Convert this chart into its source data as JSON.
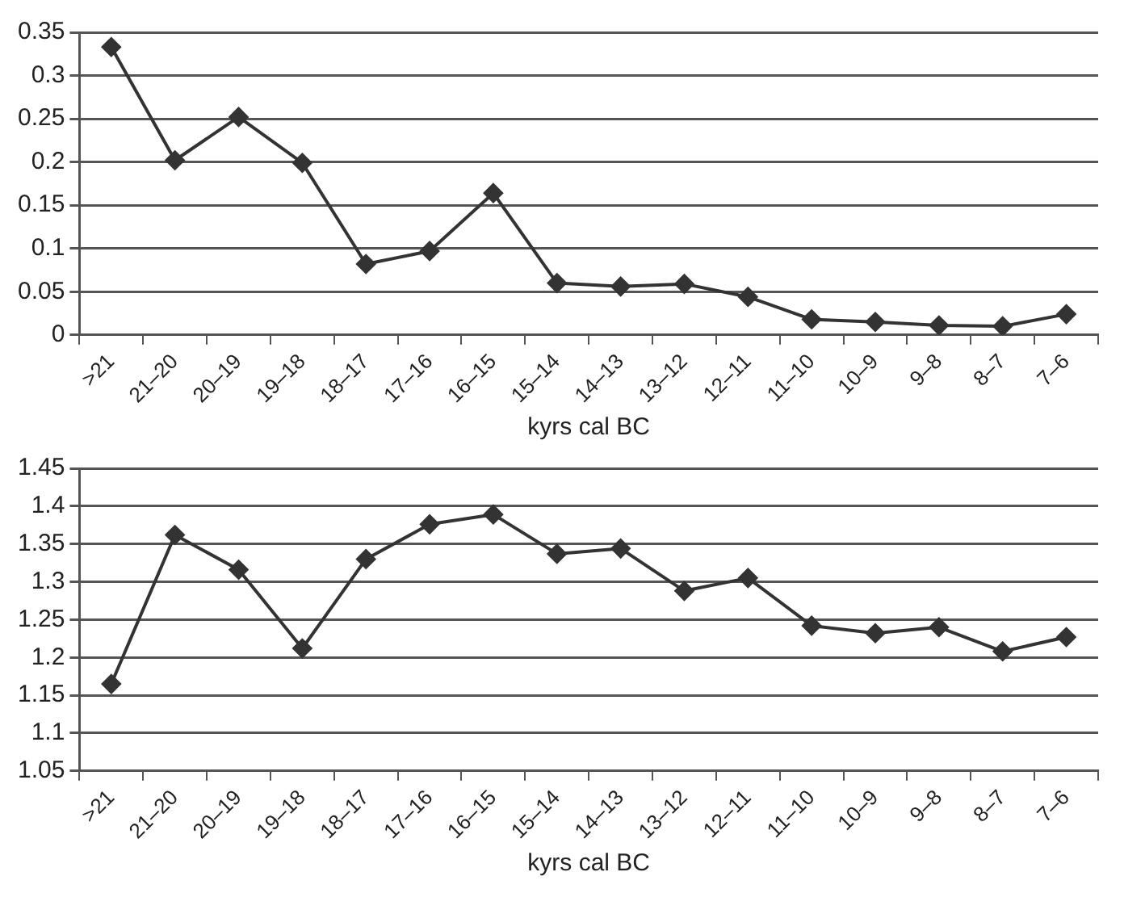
{
  "chart_data": [
    {
      "type": "line",
      "categories": [
        ">21",
        "21–20",
        "20–19",
        "19–18",
        "18–17",
        "17–16",
        "16–15",
        "15–14",
        "14–13",
        "13–12",
        "12–11",
        "11–10",
        "10–9",
        "9–8",
        "8–7",
        "7–6"
      ],
      "xlabel": "kyrs cal BC",
      "series": [
        {
          "color": "#333333",
          "values": [
            0.333,
            0.202,
            0.252,
            0.199,
            0.082,
            0.097,
            0.164,
            0.06,
            0.056,
            0.059,
            0.044,
            0.018,
            0.015,
            0.011,
            0.01,
            0.024
          ]
        }
      ],
      "ylim": [
        0,
        0.35
      ],
      "yticks": [
        {
          "value": 0,
          "label": "0"
        },
        {
          "value": 0.05,
          "label": "0.05"
        },
        {
          "value": 0.1,
          "label": "0.1"
        },
        {
          "value": 0.15,
          "label": "0.15"
        },
        {
          "value": 0.2,
          "label": "0.2"
        },
        {
          "value": 0.25,
          "label": "0.25"
        },
        {
          "value": 0.3,
          "label": "0.3"
        },
        {
          "value": 0.35,
          "label": "0.35"
        }
      ],
      "grid": "y",
      "legend": false,
      "marker": "diamond",
      "line_style": "solid"
    },
    {
      "type": "line",
      "categories": [
        ">21",
        "21–20",
        "20–19",
        "19–18",
        "18–17",
        "17–16",
        "16–15",
        "15–14",
        "14–13",
        "13–12",
        "12–11",
        "11–10",
        "10–9",
        "9–8",
        "8–7",
        "7–6"
      ],
      "xlabel": "kyrs cal BC",
      "series": [
        {
          "color": "#333333",
          "values": [
            1.165,
            1.362,
            1.316,
            1.212,
            1.33,
            1.376,
            1.389,
            1.337,
            1.344,
            1.288,
            1.305,
            1.242,
            1.232,
            1.24,
            1.208,
            1.227
          ]
        }
      ],
      "ylim": [
        1.05,
        1.45
      ],
      "yticks": [
        {
          "value": 1.05,
          "label": "1.05"
        },
        {
          "value": 1.1,
          "label": "1.1"
        },
        {
          "value": 1.15,
          "label": "1.15"
        },
        {
          "value": 1.2,
          "label": "1.2"
        },
        {
          "value": 1.25,
          "label": "1.25"
        },
        {
          "value": 1.3,
          "label": "1.3"
        },
        {
          "value": 1.35,
          "label": "1.35"
        },
        {
          "value": 1.4,
          "label": "1.4"
        },
        {
          "value": 1.45,
          "label": "1.45"
        }
      ],
      "grid": "y",
      "legend": false,
      "marker": "diamond",
      "line_style": "solid"
    }
  ]
}
